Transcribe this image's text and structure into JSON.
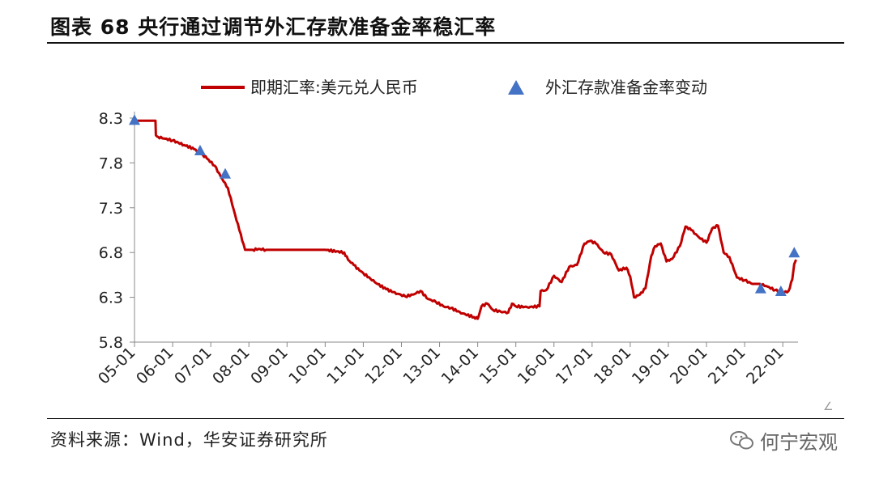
{
  "header": {
    "title": "图表 68  央行通过调节外汇存款准备金率稳汇率"
  },
  "footer": {
    "source": "资料来源：Wind，华安证券研究所",
    "watermark": "何宁宏观"
  },
  "chart_data": {
    "type": "line",
    "title": "图表 68  央行通过调节外汇存款准备金率稳汇率",
    "xlabel": "",
    "ylabel": "",
    "x_ticks": [
      "05-01",
      "06-01",
      "07-01",
      "08-01",
      "09-01",
      "10-01",
      "11-01",
      "12-01",
      "13-01",
      "14-01",
      "15-01",
      "16-01",
      "17-01",
      "18-01",
      "19-01",
      "20-01",
      "21-01",
      "22-01"
    ],
    "y_ticks": [
      5.8,
      6.3,
      6.8,
      7.3,
      7.8,
      8.3
    ],
    "ylim": [
      5.8,
      8.3
    ],
    "xlim": [
      2005.0,
      2022.4
    ],
    "grid": false,
    "legend_position": "top",
    "series": [
      {
        "name": "即期汇率:美元兑人民币",
        "kind": "line",
        "color": "#c00000",
        "x": [
          2005.0,
          2005.55,
          2005.56,
          2005.62,
          2005.8,
          2006.0,
          2006.3,
          2006.6,
          2006.9,
          2007.1,
          2007.3,
          2007.45,
          2007.6,
          2007.75,
          2007.9,
          2008.1,
          2008.25,
          2008.45,
          2008.6,
          2008.75,
          2009.0,
          2009.5,
          2010.0,
          2010.5,
          2010.6,
          2010.75,
          2010.9,
          2011.0,
          2011.3,
          2011.6,
          2011.9,
          2012.1,
          2012.3,
          2012.5,
          2012.7,
          2012.9,
          2013.1,
          2013.3,
          2013.6,
          2013.9,
          2014.0,
          2014.1,
          2014.25,
          2014.4,
          2014.6,
          2014.8,
          2014.9,
          2015.0,
          2015.3,
          2015.62,
          2015.65,
          2015.8,
          2016.0,
          2016.2,
          2016.4,
          2016.6,
          2016.8,
          2016.95,
          2017.1,
          2017.3,
          2017.5,
          2017.7,
          2017.9,
          2018.0,
          2018.1,
          2018.25,
          2018.4,
          2018.55,
          2018.65,
          2018.8,
          2018.95,
          2019.1,
          2019.3,
          2019.45,
          2019.6,
          2019.8,
          2020.0,
          2020.15,
          2020.3,
          2020.45,
          2020.6,
          2020.8,
          2021.0,
          2021.2,
          2021.4,
          2021.6,
          2021.8,
          2022.0,
          2022.15,
          2022.25,
          2022.3,
          2022.35
        ],
        "y": [
          8.27,
          8.27,
          8.11,
          8.09,
          8.07,
          8.05,
          8.0,
          7.95,
          7.85,
          7.77,
          7.62,
          7.52,
          7.28,
          7.05,
          6.83,
          6.83,
          6.84,
          6.83,
          6.83,
          6.83,
          6.83,
          6.83,
          6.83,
          6.8,
          6.72,
          6.66,
          6.6,
          6.57,
          6.47,
          6.39,
          6.34,
          6.31,
          6.33,
          6.37,
          6.28,
          6.25,
          6.2,
          6.18,
          6.12,
          6.08,
          6.06,
          6.2,
          6.23,
          6.16,
          6.14,
          6.13,
          6.23,
          6.2,
          6.19,
          6.2,
          6.37,
          6.38,
          6.54,
          6.47,
          6.64,
          6.66,
          6.9,
          6.93,
          6.9,
          6.8,
          6.78,
          6.6,
          6.63,
          6.53,
          6.3,
          6.33,
          6.4,
          6.76,
          6.87,
          6.9,
          6.7,
          6.73,
          6.87,
          7.09,
          7.05,
          6.97,
          6.91,
          7.07,
          7.1,
          6.8,
          6.75,
          6.52,
          6.49,
          6.45,
          6.45,
          6.42,
          6.38,
          6.35,
          6.37,
          6.5,
          6.67,
          6.72
        ]
      },
      {
        "name": "外汇存款准备金率变动",
        "kind": "triangle-markers",
        "color": "#4472c4",
        "x": [
          2005.0,
          2006.72,
          2007.38,
          2021.42,
          2021.95,
          2022.3
        ],
        "y": [
          8.27,
          7.93,
          7.67,
          6.39,
          6.36,
          6.79
        ]
      }
    ]
  }
}
